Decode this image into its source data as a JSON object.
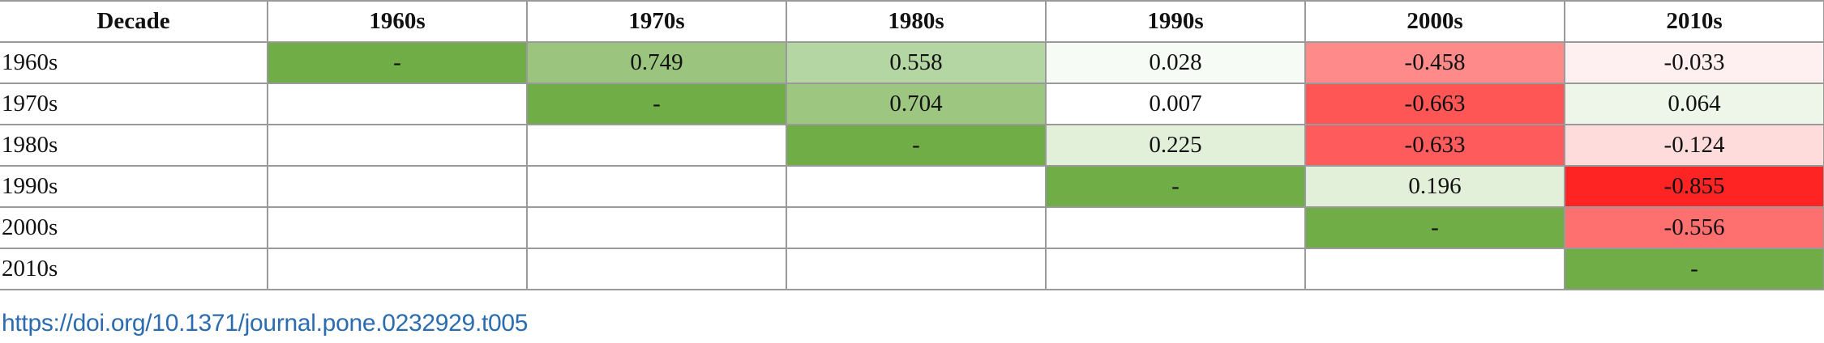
{
  "table": {
    "headers": [
      "Decade",
      "1960s",
      "1970s",
      "1980s",
      "1990s",
      "2000s",
      "2010s"
    ],
    "rows": [
      {
        "label": "1960s",
        "cells": [
          {
            "text": "-",
            "bg": "#70ad47"
          },
          {
            "text": "0.749",
            "bg": "#9bc57e"
          },
          {
            "text": "0.558",
            "bg": "#b4d6a2"
          },
          {
            "text": "0.028",
            "bg": "#f7fbf5"
          },
          {
            "text": "-0.458",
            "bg": "#fe8a8a"
          },
          {
            "text": "-0.033",
            "bg": "#fef0f0"
          }
        ]
      },
      {
        "label": "1970s",
        "cells": [
          {
            "text": "",
            "bg": "#ffffff"
          },
          {
            "text": "-",
            "bg": "#70ad47"
          },
          {
            "text": "0.704",
            "bg": "#9dc680"
          },
          {
            "text": "0.007",
            "bg": "#ffffff"
          },
          {
            "text": "-0.663",
            "bg": "#fe5555"
          },
          {
            "text": "0.064",
            "bg": "#eef6ea"
          }
        ]
      },
      {
        "label": "1980s",
        "cells": [
          {
            "text": "",
            "bg": "#ffffff"
          },
          {
            "text": "",
            "bg": "#ffffff"
          },
          {
            "text": "-",
            "bg": "#70ad47"
          },
          {
            "text": "0.225",
            "bg": "#e2efd9"
          },
          {
            "text": "-0.633",
            "bg": "#fe5c5c"
          },
          {
            "text": "-0.124",
            "bg": "#fedcdc"
          }
        ]
      },
      {
        "label": "1990s",
        "cells": [
          {
            "text": "",
            "bg": "#ffffff"
          },
          {
            "text": "",
            "bg": "#ffffff"
          },
          {
            "text": "",
            "bg": "#ffffff"
          },
          {
            "text": "-",
            "bg": "#70ad47"
          },
          {
            "text": "0.196",
            "bg": "#e2efd9"
          },
          {
            "text": "-0.855",
            "bg": "#fe2424"
          }
        ]
      },
      {
        "label": "2000s",
        "cells": [
          {
            "text": "",
            "bg": "#ffffff"
          },
          {
            "text": "",
            "bg": "#ffffff"
          },
          {
            "text": "",
            "bg": "#ffffff"
          },
          {
            "text": "",
            "bg": "#ffffff"
          },
          {
            "text": "-",
            "bg": "#70ad47"
          },
          {
            "text": "-0.556",
            "bg": "#fe6f6f"
          }
        ]
      },
      {
        "label": "2010s",
        "cells": [
          {
            "text": "",
            "bg": "#ffffff"
          },
          {
            "text": "",
            "bg": "#ffffff"
          },
          {
            "text": "",
            "bg": "#ffffff"
          },
          {
            "text": "",
            "bg": "#ffffff"
          },
          {
            "text": "",
            "bg": "#ffffff"
          },
          {
            "text": "-",
            "bg": "#70ad47"
          }
        ]
      }
    ]
  },
  "doi_link": "https://doi.org/10.1371/journal.pone.0232929.t005"
}
